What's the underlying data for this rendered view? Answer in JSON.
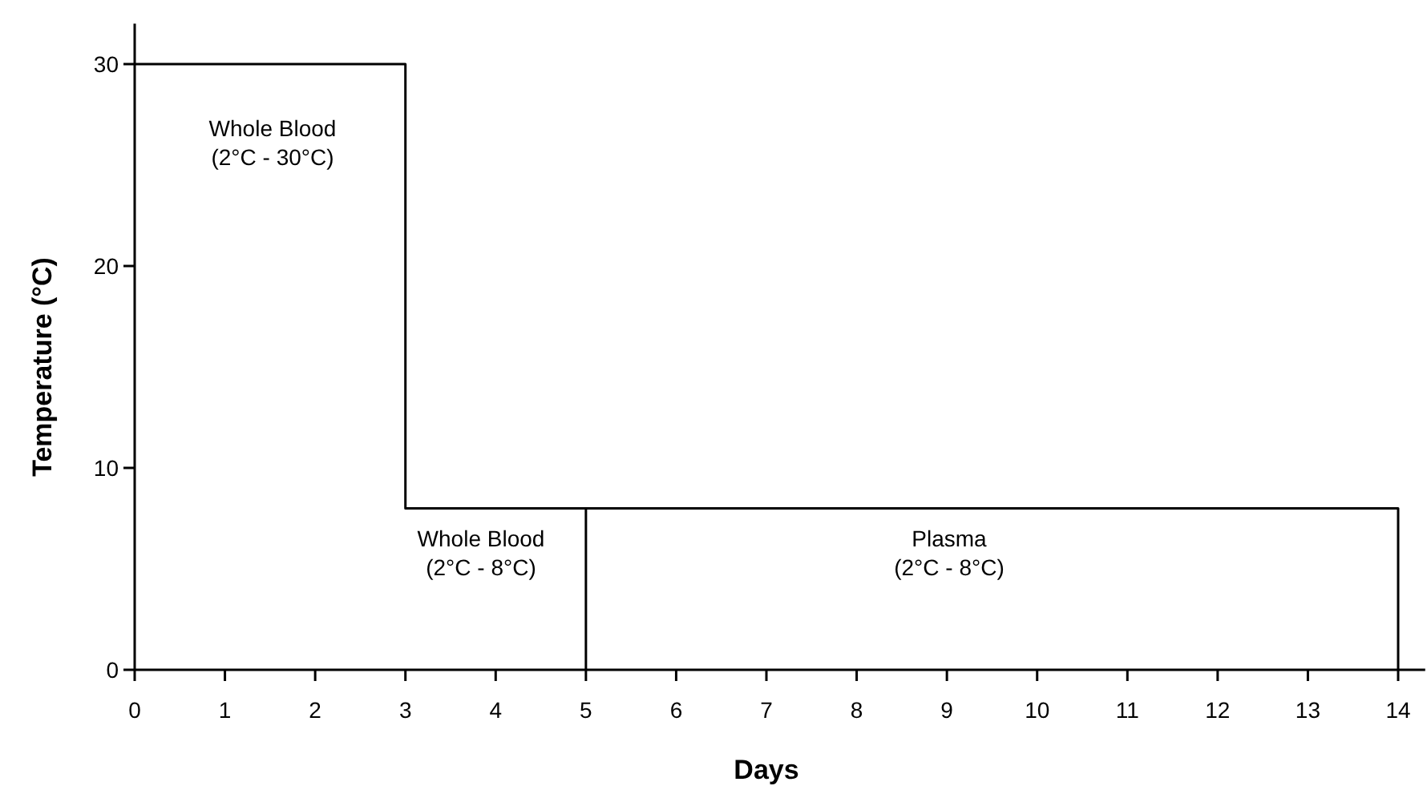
{
  "chart_data": {
    "type": "line",
    "xlabel": "Days",
    "ylabel": "Temperature (°C)",
    "xlim": [
      0,
      14.3
    ],
    "xticks": [
      0,
      1,
      2,
      3,
      4,
      5,
      6,
      7,
      8,
      9,
      10,
      11,
      12,
      13,
      14
    ],
    "ylim": [
      0,
      32
    ],
    "yticks": [
      0,
      10,
      20,
      30
    ],
    "series": [
      {
        "color": "#000000",
        "x": [
          0,
          3,
          3,
          14,
          14
        ],
        "values": [
          30,
          30,
          8,
          8,
          0
        ]
      },
      {
        "color": "#000000",
        "x": [
          5,
          5
        ],
        "values": [
          0,
          8
        ]
      }
    ],
    "annotations": [
      "Whole Blood\n(2°C - 30°C)",
      "Whole Blood\n(2°C - 8°C)",
      "Plasma\n(2°C - 8°C)"
    ],
    "grid": false,
    "line_style": "solid"
  }
}
